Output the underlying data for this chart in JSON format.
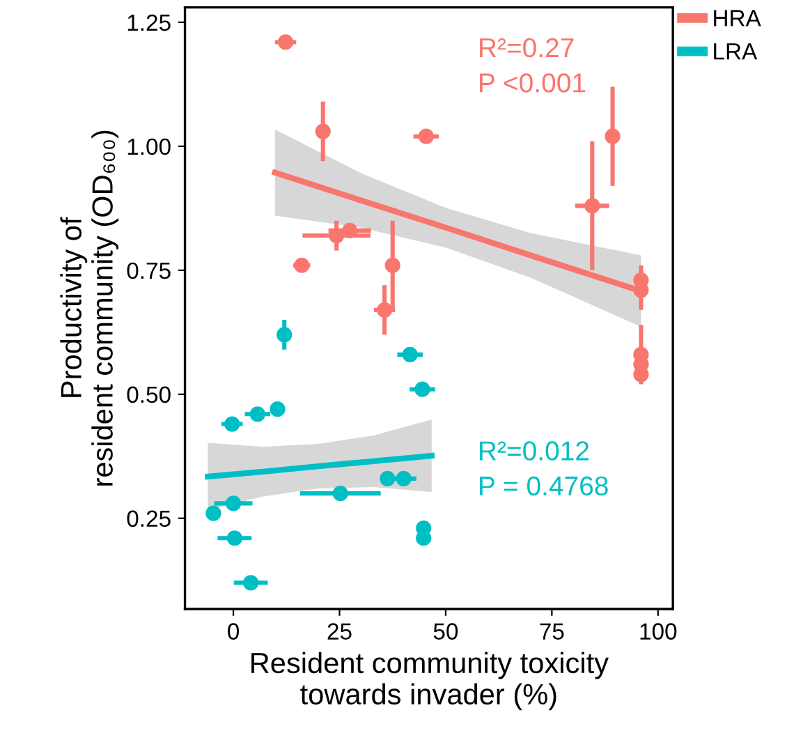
{
  "chart_data": {
    "type": "scatter",
    "xlabel": "Resident community toxicity\ntowards invader (%)",
    "ylabel": "Productivity of\nresident community (OD₆₀₀)",
    "xlim": [
      -11.4,
      103.5
    ],
    "ylim": [
      0.067,
      1.28
    ],
    "xticks": [
      0,
      25,
      50,
      75,
      100
    ],
    "yticks": [
      {
        "value": 0.25,
        "label": "0.25"
      },
      {
        "value": 0.5,
        "label": "0.50"
      },
      {
        "value": 0.75,
        "label": "0.75"
      },
      {
        "value": 1.0,
        "label": "1.00"
      },
      {
        "value": 1.25,
        "label": "1.25"
      }
    ],
    "grid": false,
    "legend": "top right",
    "series": [
      {
        "name": "HRA",
        "marker": "circle",
        "color": "#f8766d",
        "x": [
          12.3,
          21.1,
          45.4,
          24.3,
          27.4,
          16.1,
          37.5,
          35.6,
          89.3,
          84.5,
          96,
          96,
          96,
          96,
          96
        ],
        "values": [
          1.21,
          1.03,
          1.02,
          0.82,
          0.83,
          0.76,
          0.76,
          0.67,
          1.02,
          0.88,
          0.73,
          0.71,
          0.58,
          0.56,
          0.54
        ],
        "xerrors": [
          2.5,
          null,
          3,
          8,
          5,
          2,
          null,
          2.5,
          null,
          4,
          null,
          null,
          null,
          null,
          null
        ],
        "errors": [
          null,
          0.06,
          null,
          0.03,
          null,
          null,
          0.09,
          0.05,
          0.1,
          0.13,
          0.03,
          0.04,
          0.06,
          null,
          null
        ]
      },
      {
        "name": "LRA",
        "marker": "circle",
        "color": "#00bfc4",
        "x": [
          12.0,
          41.6,
          44.5,
          10.4,
          5.7,
          -0.3,
          36.3,
          40.1,
          25.2,
          0,
          -4.7,
          44.8,
          44.8,
          0.3,
          4.1
        ],
        "values": [
          0.62,
          0.58,
          0.51,
          0.47,
          0.46,
          0.44,
          0.33,
          0.33,
          0.3,
          0.28,
          0.26,
          0.23,
          0.21,
          0.21,
          0.12
        ],
        "xerrors": [
          null,
          3,
          3,
          null,
          3,
          2.5,
          1.5,
          3,
          9.5,
          4.5,
          null,
          null,
          null,
          4,
          4
        ],
        "errors": [
          0.03,
          null,
          null,
          null,
          null,
          null,
          null,
          null,
          null,
          null,
          null,
          null,
          null,
          null,
          null
        ]
      },
      {
        "type": "line",
        "color": "#f8766d",
        "x": [
          9.8,
          30,
          50,
          70,
          96
        ],
        "values": [
          0.947,
          0.891,
          0.836,
          0.78,
          0.708
        ],
        "lower": [
          0.86,
          0.836,
          0.796,
          0.735,
          0.636
        ],
        "upper": [
          1.034,
          0.946,
          0.876,
          0.825,
          0.78
        ]
      },
      {
        "type": "line",
        "color": "#00bfc4",
        "x": [
          -6,
          7,
          20,
          33,
          46.7
        ],
        "values": [
          0.334,
          0.344,
          0.355,
          0.365,
          0.376
        ],
        "lower": [
          0.266,
          0.294,
          0.31,
          0.313,
          0.303
        ],
        "upper": [
          0.402,
          0.394,
          0.4,
          0.417,
          0.449
        ]
      }
    ],
    "annotations": [
      "R²=0.27\nP <0.001",
      "R²=0.012\nP = 0.4768"
    ]
  }
}
